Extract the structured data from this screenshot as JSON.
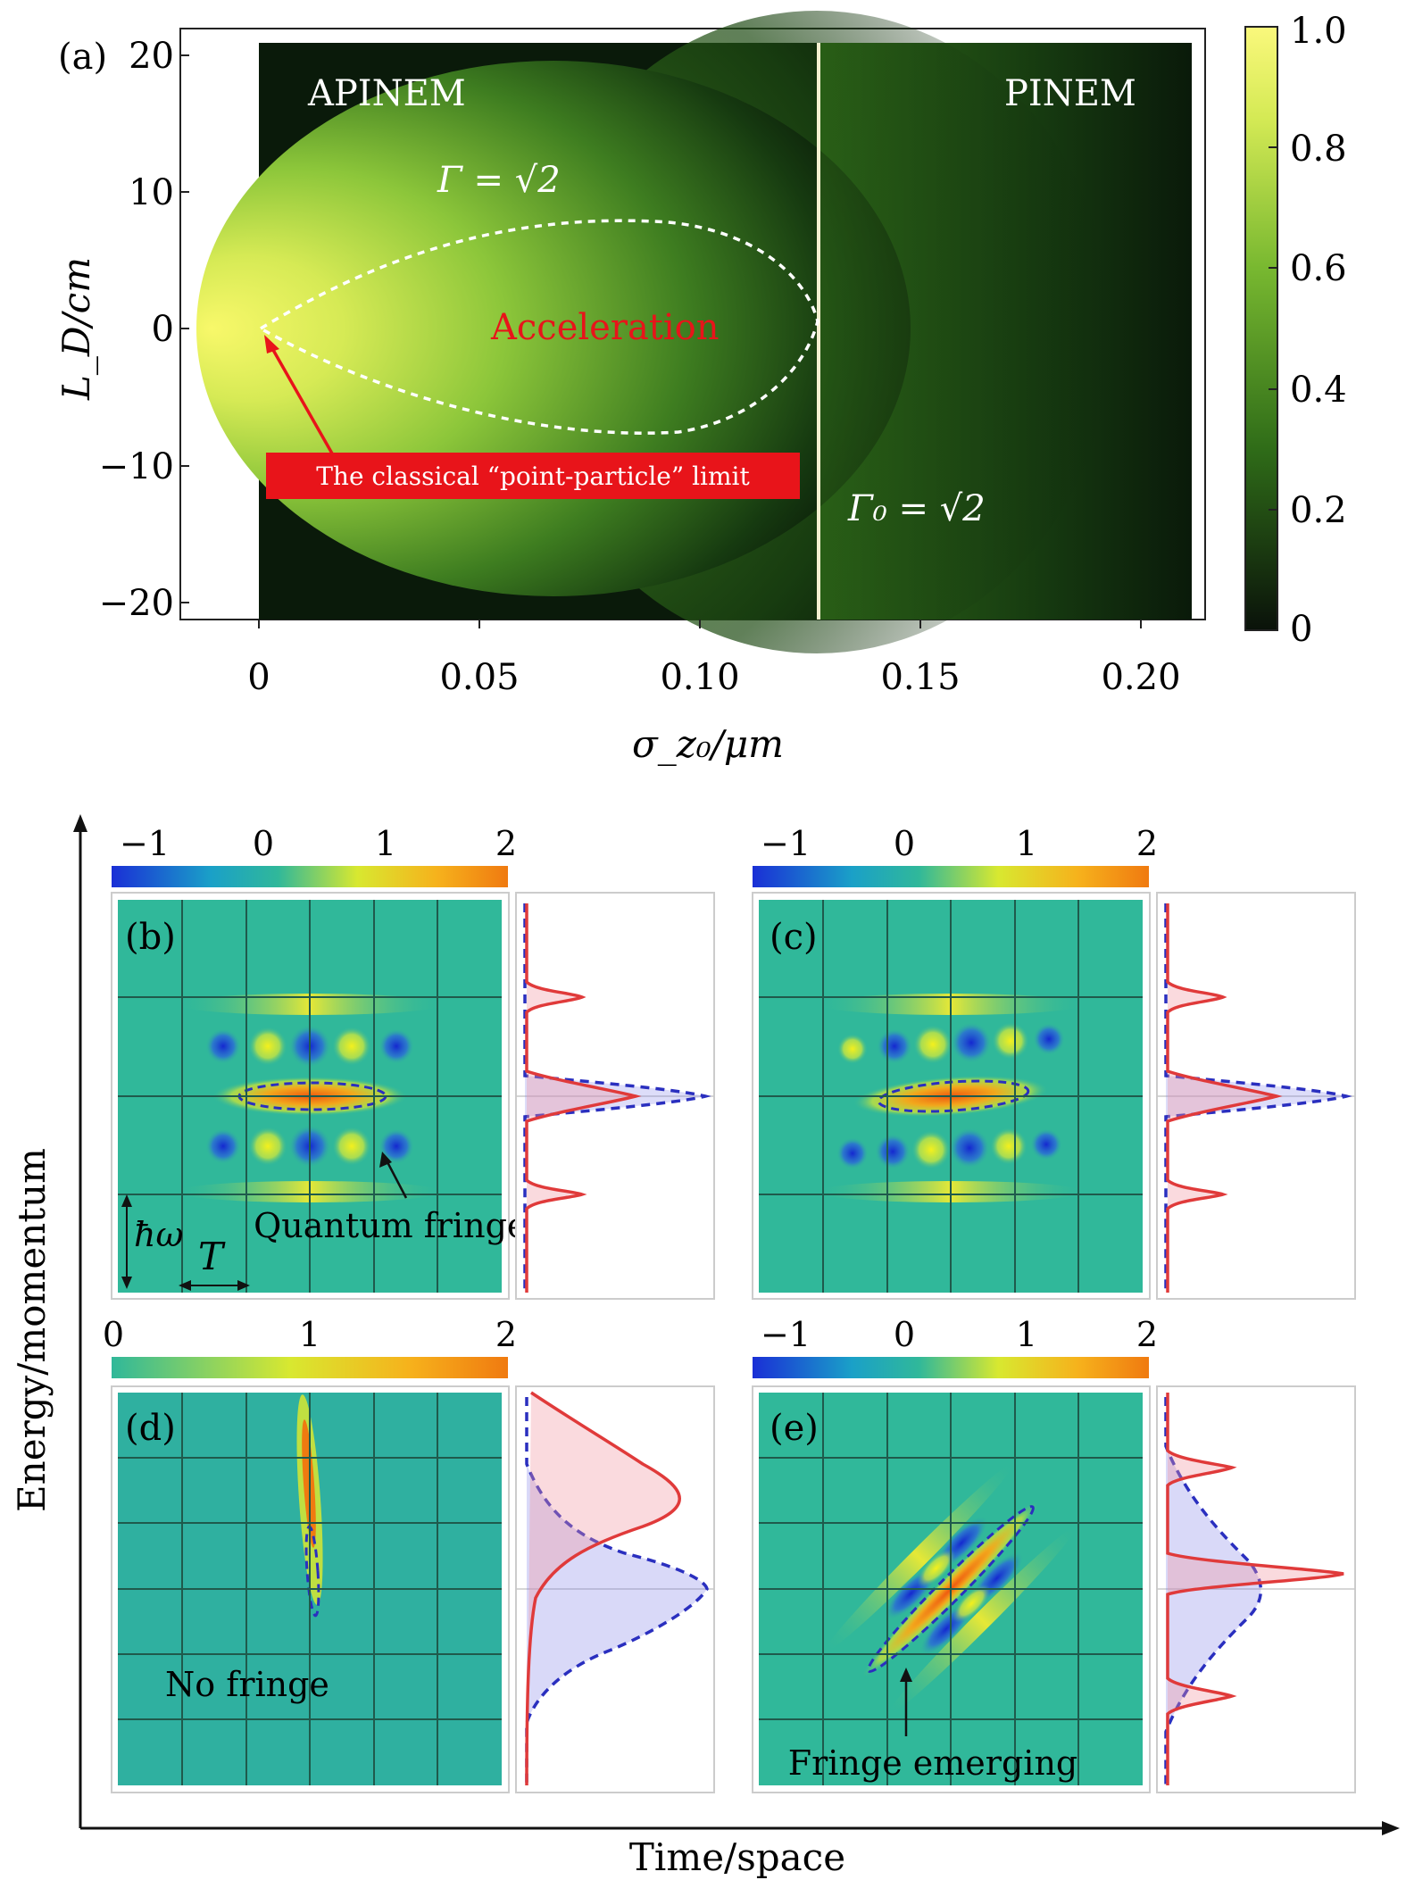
{
  "panel_a": {
    "label": "(a)",
    "region_left": "APINEM",
    "region_right": "PINEM",
    "gamma_label": "Γ = √2",
    "gamma0_label": "Γ₀ = √2",
    "center_label": "Acceleration",
    "annotation": "The classical “point-particle” limit",
    "xlabel": "σ_z₀/μm",
    "ylabel": "L_D/cm",
    "x_ticks": [
      "0",
      "0.05",
      "0.10",
      "0.15",
      "0.20"
    ],
    "y_ticks": [
      "20",
      "10",
      "0",
      "−10",
      "−20"
    ],
    "colorbar_ticks": [
      "1.0",
      "0.8",
      "0.6",
      "0.4",
      "0.2",
      "0"
    ],
    "colors": {
      "dark": "#0a1a0a",
      "mid": "#3f8a1f",
      "bright": "#f2f55a",
      "divider": "#f4f0d0",
      "annotation_bg": "#e8141a"
    }
  },
  "panels_bottom": {
    "axis_x": "Time/space",
    "axis_y": "Energy/momentum",
    "cbar_signed_ticks": [
      "−1",
      "0",
      "1",
      "2"
    ],
    "cbar_positive_ticks": [
      "0",
      "1",
      "2"
    ],
    "b": {
      "label": "(b)",
      "note": "Quantum fringes",
      "hbar": "ħω",
      "period": "T"
    },
    "c": {
      "label": "(c)"
    },
    "d": {
      "label": "(d)",
      "note": "No fringe"
    },
    "e": {
      "label": "(e)",
      "note": "Fringe emerging"
    },
    "colors": {
      "teal": "#2fae97",
      "grid": "#1f5a4c",
      "red": "#e03a3a",
      "blue": "#2a2fbf"
    }
  },
  "chart_data": [
    {
      "type": "heatmap",
      "title": "",
      "xlabel": "σ_z₀/μm",
      "ylabel": "L_D/cm",
      "xlim": [
        0,
        0.21
      ],
      "ylim": [
        -21,
        21
      ],
      "x_ticks": [
        0,
        0.05,
        0.1,
        0.15,
        0.2
      ],
      "y_ticks": [
        -20,
        -10,
        0,
        10,
        20
      ],
      "colorbar": {
        "min": 0,
        "max": 1.0,
        "ticks": [
          0,
          0.2,
          0.4,
          0.6,
          0.8,
          1.0
        ]
      },
      "divider_x": 0.127,
      "contour_Gamma_sqrt2": {
        "x_range": [
          0,
          0.127
        ],
        "peak_y": 7.7,
        "min_y": -8.0,
        "peak_x": 0.09
      }
    }
  ]
}
